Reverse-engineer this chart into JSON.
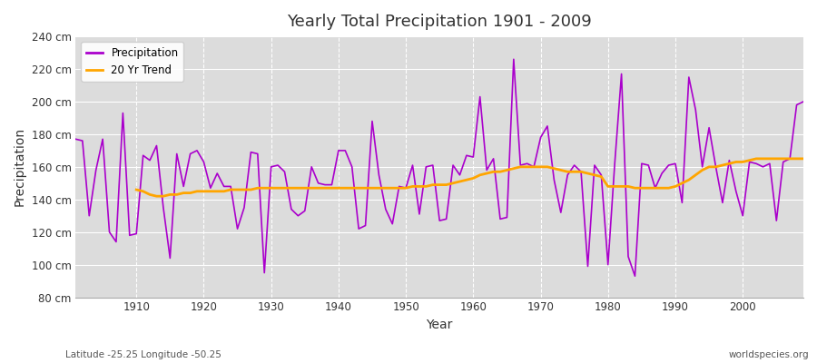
{
  "title": "Yearly Total Precipitation 1901 - 2009",
  "xlabel": "Year",
  "ylabel": "Precipitation",
  "subtitle": "Latitude -25.25 Longitude -50.25",
  "watermark": "worldspecies.org",
  "line_color": "#aa00cc",
  "trend_color": "#FFA500",
  "bg_color": "#ffffff",
  "plot_bg_color": "#dcdcdc",
  "ylim": [
    80,
    240
  ],
  "yticks": [
    80,
    100,
    120,
    140,
    160,
    180,
    200,
    220,
    240
  ],
  "xlim": [
    1901,
    2009
  ],
  "xticks": [
    1910,
    1920,
    1930,
    1940,
    1950,
    1960,
    1970,
    1980,
    1990,
    2000
  ],
  "years": [
    1901,
    1902,
    1903,
    1904,
    1905,
    1906,
    1907,
    1908,
    1909,
    1910,
    1911,
    1912,
    1913,
    1914,
    1915,
    1916,
    1917,
    1918,
    1919,
    1920,
    1921,
    1922,
    1923,
    1924,
    1925,
    1926,
    1927,
    1928,
    1929,
    1930,
    1931,
    1932,
    1933,
    1934,
    1935,
    1936,
    1937,
    1938,
    1939,
    1940,
    1941,
    1942,
    1943,
    1944,
    1945,
    1946,
    1947,
    1948,
    1949,
    1950,
    1951,
    1952,
    1953,
    1954,
    1955,
    1956,
    1957,
    1958,
    1959,
    1960,
    1961,
    1962,
    1963,
    1964,
    1965,
    1966,
    1967,
    1968,
    1969,
    1970,
    1971,
    1972,
    1973,
    1974,
    1975,
    1976,
    1977,
    1978,
    1979,
    1980,
    1981,
    1982,
    1983,
    1984,
    1985,
    1986,
    1987,
    1988,
    1989,
    1990,
    1991,
    1992,
    1993,
    1994,
    1995,
    1996,
    1997,
    1998,
    1999,
    2000,
    2001,
    2002,
    2003,
    2004,
    2005,
    2006,
    2007,
    2008,
    2009
  ],
  "precip": [
    177,
    176,
    130,
    158,
    177,
    120,
    114,
    193,
    118,
    119,
    167,
    164,
    173,
    135,
    104,
    168,
    148,
    168,
    170,
    163,
    147,
    156,
    148,
    148,
    122,
    135,
    169,
    168,
    95,
    160,
    161,
    157,
    134,
    130,
    133,
    160,
    150,
    149,
    149,
    170,
    170,
    160,
    122,
    124,
    188,
    155,
    134,
    125,
    148,
    147,
    161,
    131,
    160,
    161,
    127,
    128,
    161,
    155,
    167,
    166,
    203,
    158,
    165,
    128,
    129,
    226,
    161,
    162,
    160,
    178,
    185,
    152,
    132,
    155,
    161,
    157,
    99,
    161,
    155,
    100,
    162,
    217,
    105,
    93,
    162,
    161,
    147,
    156,
    161,
    162,
    138,
    215,
    195,
    160,
    184,
    160,
    138,
    164,
    145,
    130,
    163,
    162,
    160,
    162,
    127,
    163,
    165,
    198,
    200
  ],
  "trend": [
    null,
    null,
    null,
    null,
    null,
    null,
    null,
    null,
    null,
    146,
    145,
    143,
    142,
    142,
    143,
    143,
    144,
    144,
    145,
    145,
    145,
    145,
    145,
    146,
    146,
    146,
    146,
    147,
    147,
    147,
    147,
    147,
    147,
    147,
    147,
    147,
    147,
    147,
    147,
    147,
    147,
    147,
    147,
    147,
    147,
    147,
    147,
    147,
    147,
    147,
    148,
    148,
    148,
    149,
    149,
    149,
    150,
    151,
    152,
    153,
    155,
    156,
    157,
    157,
    158,
    159,
    160,
    160,
    160,
    160,
    160,
    159,
    158,
    157,
    157,
    157,
    156,
    155,
    154,
    148,
    148,
    148,
    148,
    147,
    147,
    147,
    147,
    147,
    147,
    148,
    150,
    152,
    155,
    158,
    160,
    160,
    161,
    162,
    163,
    163,
    164,
    165,
    165,
    165,
    165,
    165,
    165,
    165,
    165
  ]
}
